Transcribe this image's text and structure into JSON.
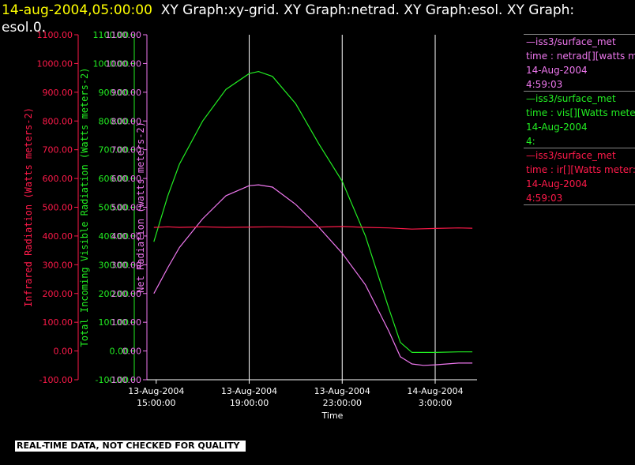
{
  "header": {
    "timestamp": "14-aug-2004,05:00:00",
    "graphs_text": "XY Graph:xy-grid.  XY Graph:netrad.  XY Graph:esol.  XY Graph:",
    "graphs_text_2": "esol.0."
  },
  "colors": {
    "ir": "#ff1a4a",
    "vis": "#22ee22",
    "net": "#ee77ee",
    "axis_x": "#ffffff",
    "grid": "#ffffff"
  },
  "legend": [
    {
      "line1": "iss3/surface_met",
      "line2": "time : netrad[][watts me",
      "line3": "14-Aug-2004",
      "line4": "4:59:03",
      "color": "#ee77ee"
    },
    {
      "line1": "iss3/surface_met",
      "line2": "time : vis[][Watts mete",
      "line3": "14-Aug-2004",
      "line4": "4:",
      "color": "#22ee22"
    },
    {
      "line1": "iss3/surface_met",
      "line2": "time : ir[][Watts meter:",
      "line3": "14-Aug-2004",
      "line4": "4:59:03",
      "color": "#ff1a4a"
    }
  ],
  "footer": {
    "warning": "REAL-TIME DATA, NOT CHECKED FOR QUALITY"
  },
  "chart_data": {
    "type": "line",
    "xlabel": "Time",
    "x_ticks": [
      {
        "date": "13-Aug-2004",
        "time": "15:00:00",
        "hours": 15
      },
      {
        "date": "13-Aug-2004",
        "time": "19:00:00",
        "hours": 19
      },
      {
        "date": "13-Aug-2004",
        "time": "23:00:00",
        "hours": 23
      },
      {
        "date": "14-Aug-2004",
        "time": "3:00:00",
        "hours": 27
      }
    ],
    "x_gridlines": [
      "13-Aug-2004 19:00:00",
      "13-Aug-2004 23:00:00",
      "14-Aug-2004 3:00:00"
    ],
    "xlim_hours": [
      14.6,
      28.8
    ],
    "y_axes": [
      {
        "label": "Infrared Radiation (Watts meters-2)",
        "ylim": [
          -100,
          1100
        ],
        "ticks": [
          "-100.00",
          "0.00",
          "100.00",
          "200.00",
          "300.00",
          "400.00",
          "500.00",
          "600.00",
          "700.00",
          "800.00",
          "900.00",
          "1000.00",
          "1100.00"
        ]
      },
      {
        "label": "Total Incoming Visible Radiation (Watts meters-2)",
        "ylim": [
          -100,
          1100
        ],
        "ticks": [
          "-100.00",
          "0.00",
          "100.00",
          "200.00",
          "300.00",
          "400.00",
          "500.00",
          "600.00",
          "700.00",
          "800.00",
          "900.00",
          "1000.00",
          "1100.00"
        ]
      },
      {
        "label": "Net Radiation (watts meters-2)",
        "ylim": [
          -100,
          1100
        ],
        "ticks": [
          "-100.00",
          "0.00",
          "100.00",
          "200.00",
          "300.00",
          "400.00",
          "500.00",
          "600.00",
          "700.00",
          "800.00",
          "900.00",
          "1000.00",
          "1100.00"
        ]
      }
    ],
    "series": [
      {
        "name": "time : ir[][Watts meter:",
        "color": "#ff1a4a",
        "x_hours": [
          14.9,
          15.5,
          16,
          17,
          18,
          19,
          20,
          21,
          22,
          23,
          24,
          25,
          26,
          27,
          28,
          28.6
        ],
        "values": [
          430,
          432,
          430,
          432,
          430,
          431,
          432,
          431,
          431,
          433,
          430,
          428,
          424,
          426,
          428,
          427
        ]
      },
      {
        "name": "time : vis[][Watts mete",
        "color": "#22ee22",
        "x_hours": [
          14.9,
          15.5,
          16,
          17,
          18,
          19,
          19.4,
          20,
          21,
          22,
          23,
          24,
          25,
          25.5,
          26,
          26.5,
          27,
          28,
          28.6
        ],
        "values": [
          380,
          540,
          650,
          800,
          910,
          965,
          972,
          955,
          860,
          720,
          590,
          400,
          150,
          30,
          -5,
          -5,
          -5,
          -3,
          -3
        ]
      },
      {
        "name": "time : netrad[][watts me",
        "color": "#ee77ee",
        "x_hours": [
          14.9,
          15.5,
          16,
          17,
          18,
          19,
          19.4,
          20,
          21,
          22,
          23,
          24,
          25,
          25.5,
          26,
          26.5,
          27,
          28,
          28.6
        ],
        "values": [
          200,
          290,
          360,
          460,
          540,
          575,
          578,
          570,
          510,
          430,
          340,
          230,
          70,
          -20,
          -45,
          -50,
          -48,
          -42,
          -42
        ]
      }
    ]
  }
}
